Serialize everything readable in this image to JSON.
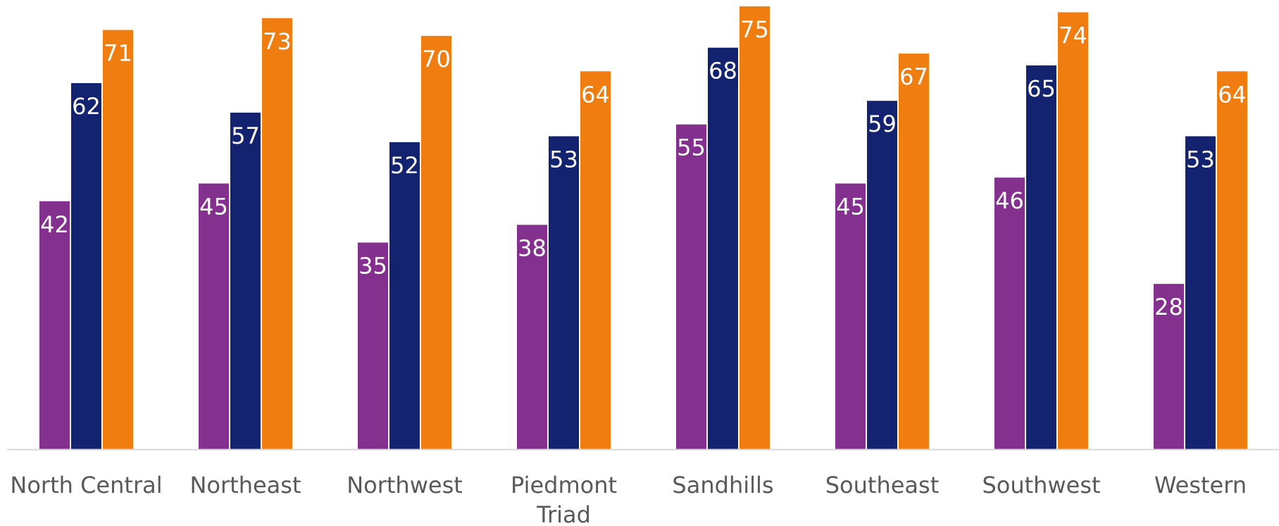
{
  "chart_data": {
    "type": "bar",
    "categories": [
      "North Central",
      "Northeast",
      "Northwest",
      "Piedmont Triad",
      "Sandhills",
      "Southeast",
      "Southwest",
      "Western"
    ],
    "category_lines": [
      [
        "North Central"
      ],
      [
        "Northeast"
      ],
      [
        "Northwest"
      ],
      [
        "Piedmont",
        "Triad"
      ],
      [
        "Sandhills"
      ],
      [
        "Southeast"
      ],
      [
        "Southwest"
      ],
      [
        "Western"
      ]
    ],
    "series": [
      {
        "color": "#84308F",
        "values": [
          42,
          45,
          35,
          38,
          55,
          45,
          46,
          28
        ]
      },
      {
        "color": "#13236F",
        "values": [
          62,
          57,
          52,
          53,
          68,
          59,
          65,
          53
        ]
      },
      {
        "color": "#F07D0F",
        "values": [
          71,
          73,
          70,
          64,
          75,
          67,
          74,
          64
        ]
      }
    ],
    "title": "",
    "xlabel": "",
    "ylabel": "",
    "ylim": [
      0,
      75
    ],
    "grid": false,
    "legend": "none",
    "data_labels": true,
    "baseline_color": "#D9D9D9"
  }
}
